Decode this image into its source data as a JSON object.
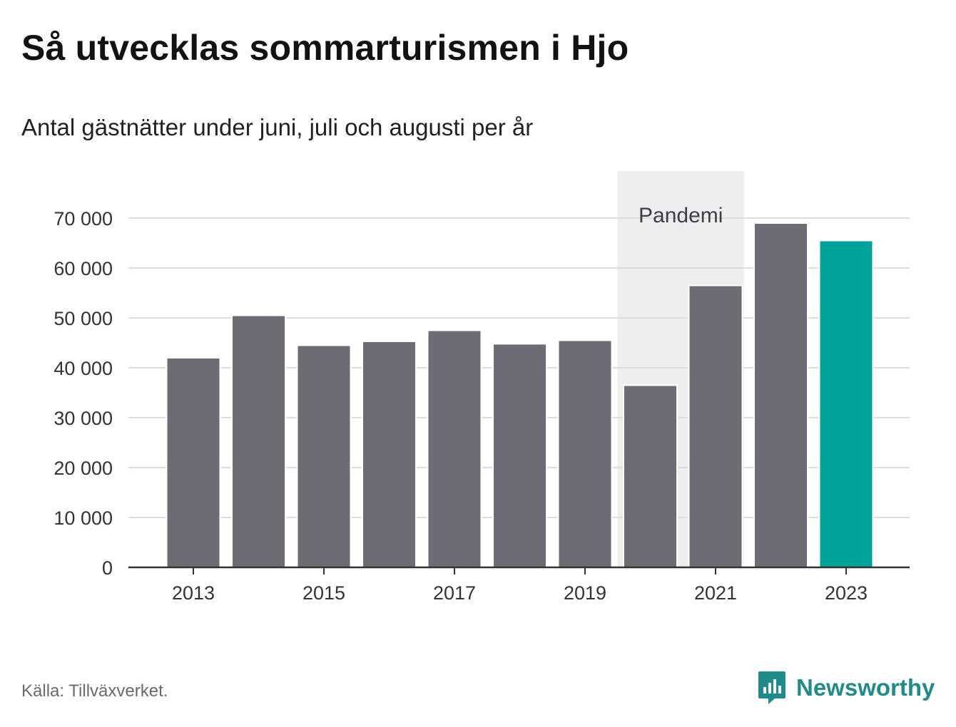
{
  "header": {
    "title": "Så utvecklas sommarturismen i Hjo",
    "subtitle": "Antal gästnätter under juni, juli och augusti per år"
  },
  "footer": {
    "source": "Källa: Tillväxverket.",
    "brand": "Newsworthy"
  },
  "colors": {
    "bar": "#6d6c75",
    "highlight": "#00a39a",
    "pandemic_band": "#eeeeee",
    "grid": "#dddddd",
    "axis": "#333333",
    "brand": "#1d8c8a"
  },
  "chart_data": {
    "type": "bar",
    "categories": [
      2013,
      2014,
      2015,
      2016,
      2017,
      2018,
      2019,
      2020,
      2021,
      2022,
      2023
    ],
    "values": [
      42000,
      50500,
      44500,
      45300,
      47500,
      44800,
      45500,
      36500,
      56500,
      69000,
      65500
    ],
    "highlight_category": 2023,
    "x_tick_labels": [
      "2013",
      "2015",
      "2017",
      "2019",
      "2021",
      "2023"
    ],
    "y_tick_labels": [
      "0",
      "10 000",
      "20 000",
      "30 000",
      "40 000",
      "50 000",
      "60 000",
      "70 000"
    ],
    "y_ticks": [
      0,
      10000,
      20000,
      30000,
      40000,
      50000,
      60000,
      70000
    ],
    "ylim": [
      0,
      70000
    ],
    "grid": true,
    "legend": "none",
    "annotations": [
      {
        "label": "Pandemi",
        "from": 2020,
        "to": 2021,
        "type": "band"
      }
    ]
  }
}
